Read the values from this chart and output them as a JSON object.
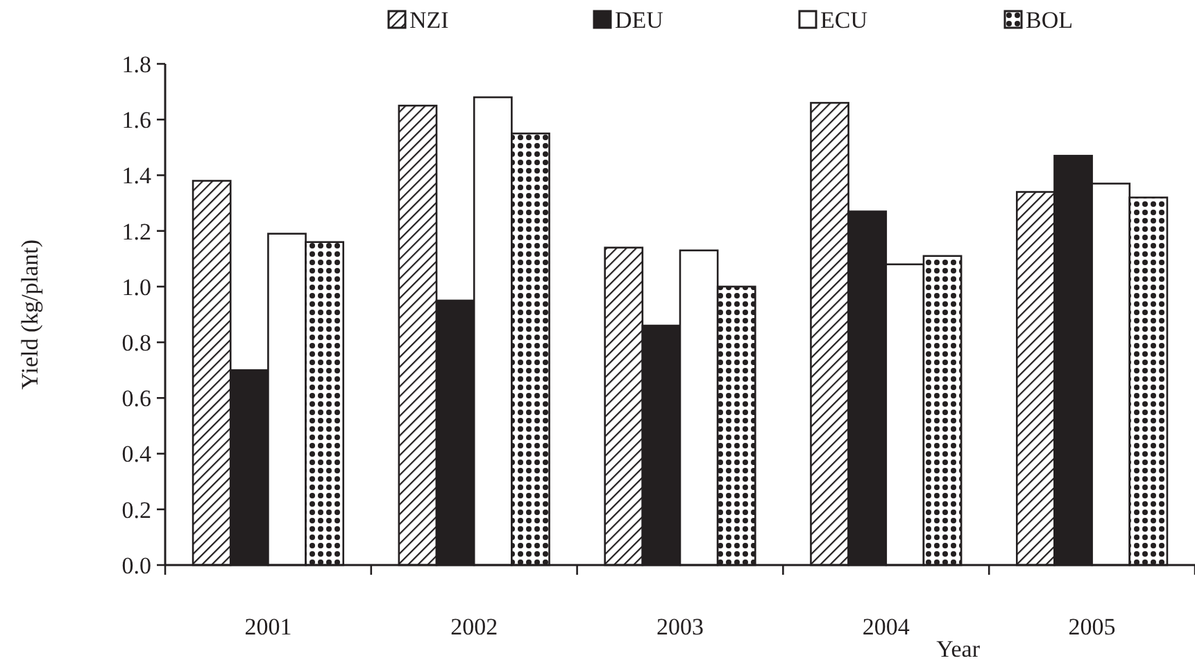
{
  "chart_data": {
    "type": "bar",
    "xlabel": "Year",
    "ylabel": "Yield (kg/plant)",
    "categories": [
      "2001",
      "2002",
      "2003",
      "2004",
      "2005"
    ],
    "series": [
      {
        "name": "NZI",
        "color": "#231f20",
        "values": [
          1.38,
          1.65,
          1.14,
          1.66,
          1.34
        ]
      },
      {
        "name": "DEU",
        "color": "#231f20",
        "values": [
          0.7,
          0.95,
          0.86,
          1.27,
          1.47
        ]
      },
      {
        "name": "ECU",
        "color": "#ffffff",
        "values": [
          1.19,
          1.68,
          1.13,
          1.08,
          1.37
        ]
      },
      {
        "name": "BOL",
        "color": "#231f20",
        "values": [
          1.16,
          1.55,
          1.0,
          1.11,
          1.32
        ]
      }
    ],
    "ylim": [
      0,
      1.8
    ],
    "yticks": [
      {
        "value": 0,
        "label": "0.0"
      },
      0.2,
      0.4,
      0.6,
      0.8,
      {
        "value": 1,
        "label": "1.0"
      },
      1.2,
      1.4,
      1.6,
      1.8
    ],
    "grid": false,
    "legend": "top"
  }
}
